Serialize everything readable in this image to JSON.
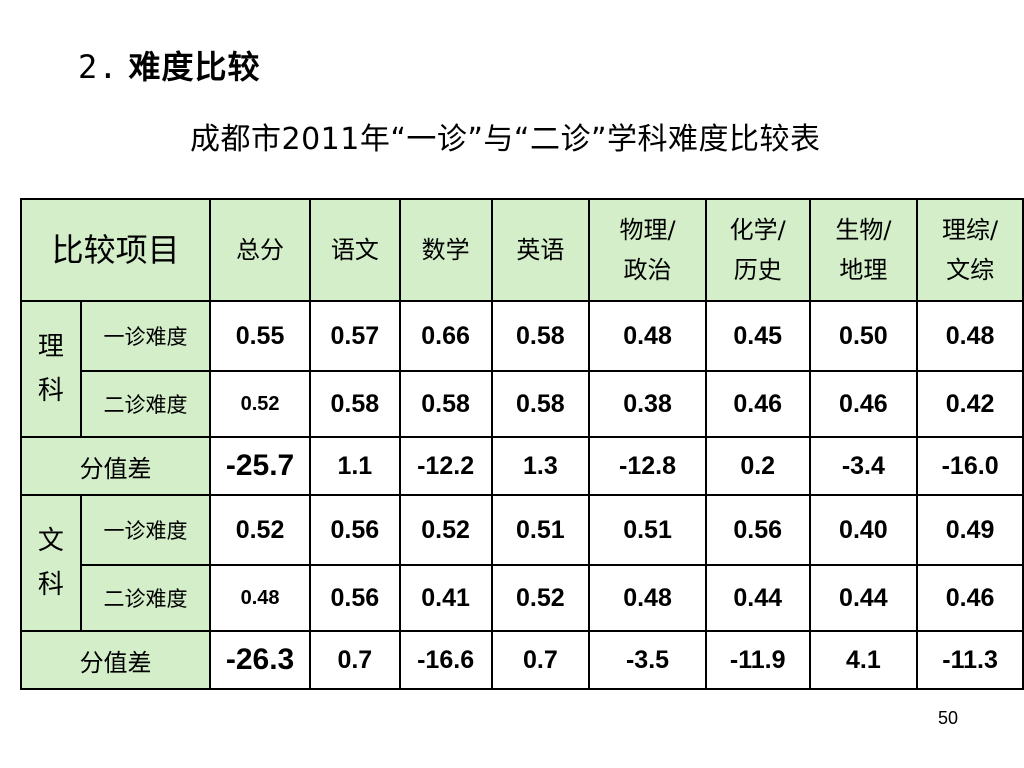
{
  "heading": {
    "number": "2.",
    "text": "难度比较"
  },
  "subtitle": "成都市2011年“一诊”与“二诊”学科难度比较表",
  "table": {
    "corner": "比较项目",
    "columns": [
      {
        "line1": "总分",
        "line2": ""
      },
      {
        "line1": "语文",
        "line2": ""
      },
      {
        "line1": "数学",
        "line2": ""
      },
      {
        "line1": "英语",
        "line2": ""
      },
      {
        "line1": "物理/",
        "line2": "政治"
      },
      {
        "line1": "化学/",
        "line2": "历史"
      },
      {
        "line1": "生物/",
        "line2": "地理"
      },
      {
        "line1": "理综/",
        "line2": "文综"
      }
    ],
    "groups": [
      {
        "label_top": "理",
        "label_bottom": "科",
        "row1": {
          "label": "一诊难度",
          "values": [
            "0.55",
            "0.57",
            "0.66",
            "0.58",
            "0.48",
            "0.45",
            "0.50",
            "0.48"
          ]
        },
        "row2": {
          "label": "二诊难度",
          "values": [
            "0.52",
            "0.58",
            "0.58",
            "0.58",
            "0.38",
            "0.46",
            "0.46",
            "0.42"
          ]
        },
        "diff": {
          "label": "分值差",
          "values": [
            "-25.7",
            "1.1",
            "-12.2",
            "1.3",
            "-12.8",
            "0.2",
            "-3.4",
            "-16.0"
          ]
        }
      },
      {
        "label_top": "文",
        "label_bottom": "科",
        "row1": {
          "label": "一诊难度",
          "values": [
            "0.52",
            "0.56",
            "0.52",
            "0.51",
            "0.51",
            "0.56",
            "0.40",
            "0.49"
          ]
        },
        "row2": {
          "label": "二诊难度",
          "values": [
            "0.48",
            "0.56",
            "0.41",
            "0.52",
            "0.48",
            "0.44",
            "0.44",
            "0.46"
          ]
        },
        "diff": {
          "label": "分值差",
          "values": [
            "-26.3",
            "0.7",
            "-16.6",
            "0.7",
            "-3.5",
            "-11.9",
            "4.1",
            "-11.3"
          ]
        }
      }
    ]
  },
  "page_number": "50"
}
